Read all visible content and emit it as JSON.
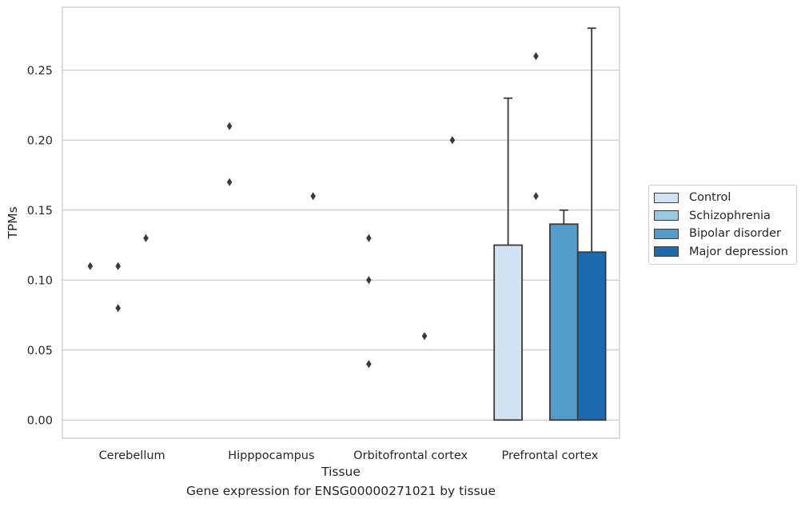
{
  "chart_data": {
    "type": "bar",
    "title": "",
    "caption": "Gene expression for ENSG00000271021 by tissue",
    "xlabel": "Tissue",
    "ylabel": "TPMs",
    "ylim": [
      -0.013,
      0.295
    ],
    "yticks": [
      0.0,
      0.05,
      0.1,
      0.15,
      0.2,
      0.25
    ],
    "ytick_labels": [
      "0.00",
      "0.05",
      "0.10",
      "0.15",
      "0.20",
      "0.25"
    ],
    "grid": "horizontal",
    "legend_position": "right",
    "categories": [
      "Cerebellum",
      "Hipppocampus",
      "Orbitofrontal cortex",
      "Prefrontal cortex"
    ],
    "series": [
      {
        "name": "Control",
        "color": "#d1e2f2",
        "values": [
          0,
          0,
          0,
          0.125
        ],
        "error_upper": [
          0,
          0,
          0,
          0.23
        ],
        "outliers": [
          [
            0.11
          ],
          [
            0.21,
            0.17
          ],
          [
            0.13,
            0.1,
            0.04
          ],
          []
        ]
      },
      {
        "name": "Schizophrenia",
        "color": "#9ac8e0",
        "values": [
          0,
          0,
          0,
          0
        ],
        "error_upper": [
          0,
          0,
          0,
          0
        ],
        "outliers": [
          [
            0.11,
            0.08
          ],
          [],
          [],
          [
            0.26,
            0.16
          ]
        ]
      },
      {
        "name": "Bipolar disorder",
        "color": "#529dcc",
        "values": [
          0,
          0,
          0,
          0.14
        ],
        "error_upper": [
          0,
          0,
          0,
          0.15
        ],
        "outliers": [
          [
            0.13
          ],
          [],
          [
            0.06
          ],
          []
        ]
      },
      {
        "name": "Major depression",
        "color": "#1c6aaf",
        "values": [
          0,
          0,
          0,
          0.12
        ],
        "error_upper": [
          0,
          0,
          0,
          0.28
        ],
        "outliers": [
          [],
          [
            0.16
          ],
          [
            0.2
          ],
          []
        ]
      }
    ]
  }
}
